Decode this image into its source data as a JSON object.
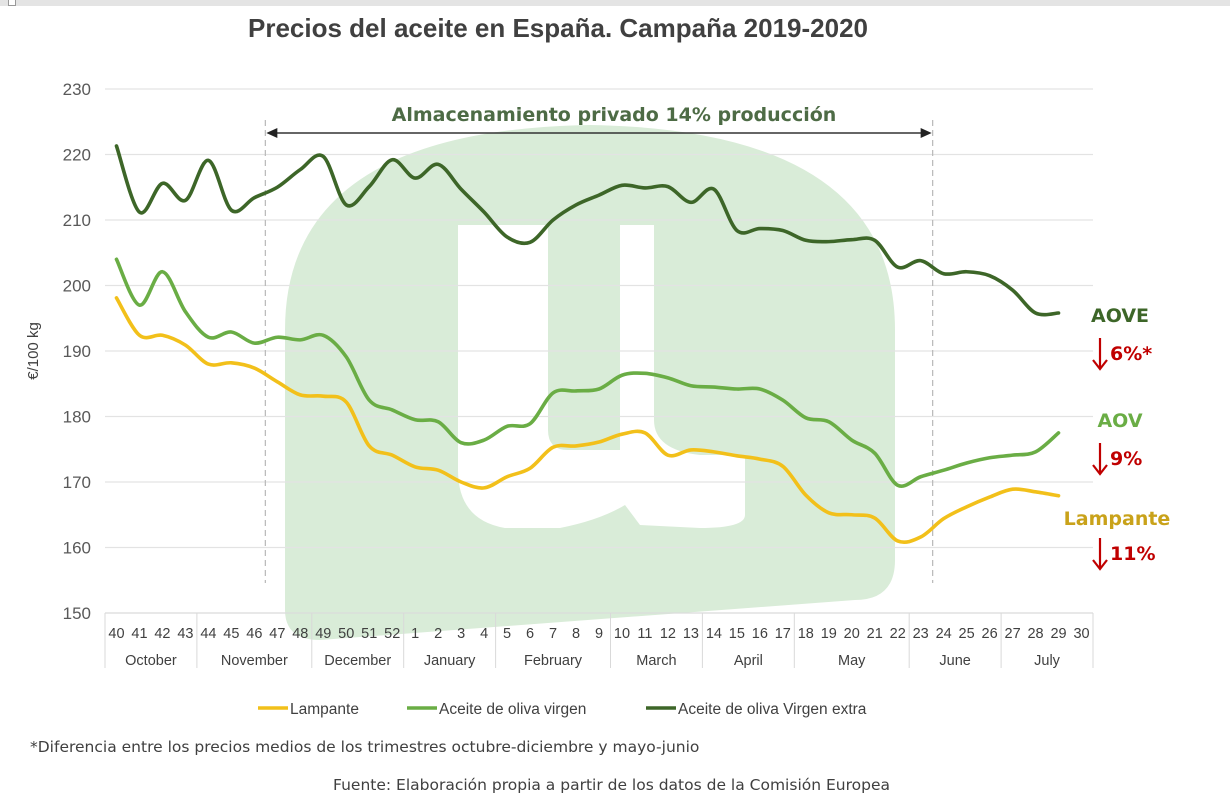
{
  "chart_data": {
    "type": "line",
    "title": "Precios del aceite en España. Campaña 2019-2020",
    "ylabel": "€/100 kg",
    "xlabel": "",
    "ylim": [
      150,
      230
    ],
    "yticks": [
      150,
      160,
      170,
      180,
      190,
      200,
      210,
      220,
      230
    ],
    "grid": true,
    "x": [
      "40",
      "41",
      "42",
      "43",
      "44",
      "45",
      "46",
      "47",
      "48",
      "49",
      "50",
      "51",
      "52",
      "1",
      "2",
      "3",
      "4",
      "5",
      "6",
      "7",
      "8",
      "9",
      "10",
      "11",
      "12",
      "13",
      "14",
      "15",
      "16",
      "17",
      "18",
      "19",
      "20",
      "21",
      "22",
      "23",
      "24",
      "25",
      "26",
      "27",
      "28",
      "29",
      "30"
    ],
    "months": [
      {
        "label": "October",
        "start": 0,
        "end": 3
      },
      {
        "label": "November",
        "start": 4,
        "end": 8
      },
      {
        "label": "December",
        "start": 9,
        "end": 12
      },
      {
        "label": "January",
        "start": 13,
        "end": 16
      },
      {
        "label": "February",
        "start": 17,
        "end": 21
      },
      {
        "label": "March",
        "start": 22,
        "end": 25
      },
      {
        "label": "April",
        "start": 26,
        "end": 29
      },
      {
        "label": "May",
        "start": 30,
        "end": 34
      },
      {
        "label": "June",
        "start": 35,
        "end": 38
      },
      {
        "label": "July",
        "start": 39,
        "end": 42
      }
    ],
    "series": [
      {
        "name": "Lampante",
        "color": "#f2c01a",
        "values": [
          198.1,
          192.4,
          192.4,
          190.9,
          188.0,
          188.2,
          187.4,
          185.3,
          183.3,
          183.1,
          182.2,
          175.5,
          174.1,
          172.3,
          171.8,
          170.0,
          169.1,
          170.8,
          172.1,
          175.3,
          175.5,
          176.1,
          177.3,
          177.5,
          174.1,
          174.9,
          174.6,
          174.0,
          173.5,
          172.4,
          168.0,
          165.3,
          165.0,
          164.5,
          161.0,
          161.6,
          164.4,
          166.2,
          167.7,
          168.9,
          168.5,
          167.9,
          null
        ]
      },
      {
        "name": "Aceite de oliva virgen",
        "color": "#6aad45",
        "values": [
          204.0,
          197.0,
          202.1,
          196.0,
          192.1,
          192.9,
          191.2,
          192.1,
          191.7,
          192.4,
          189.1,
          182.5,
          181.0,
          179.5,
          179.2,
          176.0,
          176.4,
          178.5,
          178.9,
          183.6,
          183.9,
          184.2,
          186.3,
          186.6,
          185.9,
          184.7,
          184.5,
          184.2,
          184.2,
          182.5,
          179.8,
          179.2,
          176.4,
          174.4,
          169.5,
          170.8,
          171.8,
          172.9,
          173.7,
          174.1,
          174.6,
          177.5,
          null
        ]
      },
      {
        "name": "Aceite de oliva Virgen extra",
        "color": "#3d6628",
        "values": [
          221.3,
          211.2,
          215.6,
          213.0,
          219.1,
          211.5,
          213.4,
          215.0,
          217.7,
          219.7,
          212.3,
          215.1,
          219.2,
          216.4,
          218.5,
          214.7,
          211.2,
          207.4,
          206.6,
          210.0,
          212.3,
          213.8,
          215.3,
          214.9,
          215.1,
          212.7,
          214.7,
          208.4,
          208.7,
          208.4,
          206.9,
          206.7,
          207.0,
          206.9,
          202.8,
          203.8,
          201.8,
          202.1,
          201.5,
          199.3,
          195.8,
          195.8,
          null
        ]
      }
    ],
    "annotations": {
      "storage_period": {
        "text": "Almacenamiento privado 14% producción",
        "start_index": 6.5,
        "end_index": 35.5
      },
      "end_labels": [
        {
          "label": "AOVE",
          "change": "6%*",
          "color": "#3d6628"
        },
        {
          "label": "AOV",
          "change": "9%",
          "color": "#6aad45"
        },
        {
          "label": "Lampante",
          "change": "11%",
          "color": "#c9a21a"
        }
      ],
      "change_arrow": "down-arrow",
      "change_color": "#c00000"
    },
    "legend": {
      "placement": "bottom",
      "entries": [
        "Lampante",
        "Aceite de oliva virgen",
        "Aceite de oliva Virgen extra"
      ]
    },
    "footnote": "*Diferencia entre los precios medios de los trimestres octubre-diciembre y mayo-junio",
    "source": "Fuente: Elaboración propia a partir de los datos de la Comisión Europea"
  },
  "watermark": {
    "icon": "brand-u-logo-icon",
    "color": "#d9ecd8"
  }
}
